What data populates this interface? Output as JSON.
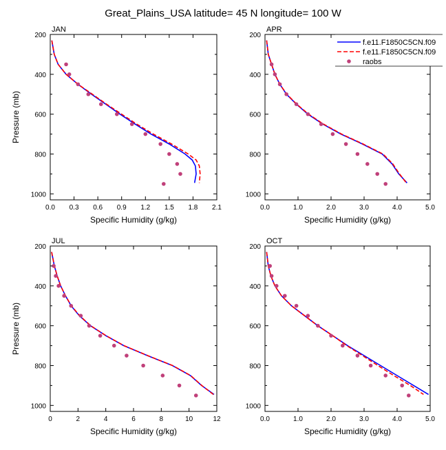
{
  "title": "Great_Plains_USA  latitude= 45 N longitude= 100 W",
  "legend": [
    {
      "label": "f.e11.F1850C5CN.f09",
      "color": "#0000ff",
      "style": "solid"
    },
    {
      "label": "f.e11.F1850C5CN.f09",
      "color": "#ff0000",
      "style": "dashed"
    },
    {
      "label": "raobs",
      "color": "#c0407a",
      "style": "marker"
    }
  ],
  "chart_data": [
    {
      "type": "line",
      "panel": "JAN",
      "xlabel": "Specific Humidity (g/kg)",
      "ylabel": "Pressure (mb)",
      "xlim": [
        0,
        2.1
      ],
      "ylim": [
        200,
        1030
      ],
      "y_inverted": true,
      "xticks": [
        "0.0",
        "0.3",
        "0.6",
        "0.9",
        "1.2",
        "1.5",
        "1.8",
        "2.1"
      ],
      "yticks": [
        "200",
        "400",
        "600",
        "800",
        "1000"
      ],
      "series": [
        {
          "name": "f.e11.F1850C5CN.f09",
          "color": "#0000ff",
          "style": "solid",
          "points": [
            [
              0.02,
              230
            ],
            [
              0.05,
              300
            ],
            [
              0.1,
              350
            ],
            [
              0.2,
              400
            ],
            [
              0.35,
              450
            ],
            [
              0.52,
              500
            ],
            [
              0.7,
              550
            ],
            [
              0.88,
              600
            ],
            [
              1.07,
              650
            ],
            [
              1.27,
              700
            ],
            [
              1.5,
              750
            ],
            [
              1.7,
              800
            ],
            [
              1.79,
              830
            ],
            [
              1.83,
              860
            ],
            [
              1.84,
              900
            ],
            [
              1.82,
              945
            ]
          ]
        },
        {
          "name": "f.e11.F1850C5CN.f09",
          "color": "#ff0000",
          "style": "dashed",
          "points": [
            [
              0.02,
              230
            ],
            [
              0.05,
              300
            ],
            [
              0.1,
              350
            ],
            [
              0.2,
              400
            ],
            [
              0.35,
              450
            ],
            [
              0.53,
              500
            ],
            [
              0.71,
              550
            ],
            [
              0.9,
              600
            ],
            [
              1.09,
              650
            ],
            [
              1.3,
              700
            ],
            [
              1.53,
              750
            ],
            [
              1.74,
              800
            ],
            [
              1.84,
              830
            ],
            [
              1.88,
              860
            ],
            [
              1.89,
              900
            ],
            [
              1.88,
              945
            ]
          ]
        },
        {
          "name": "raobs",
          "color": "#c0407a",
          "style": "marker",
          "points": [
            [
              0.2,
              350
            ],
            [
              0.24,
              400
            ],
            [
              0.35,
              450
            ],
            [
              0.48,
              500
            ],
            [
              0.64,
              550
            ],
            [
              0.84,
              600
            ],
            [
              1.03,
              650
            ],
            [
              1.2,
              700
            ],
            [
              1.39,
              750
            ],
            [
              1.5,
              800
            ],
            [
              1.6,
              850
            ],
            [
              1.64,
              900
            ],
            [
              1.43,
              950
            ]
          ]
        }
      ]
    },
    {
      "type": "line",
      "panel": "APR",
      "xlabel": "Specific Humidity (g/kg)",
      "ylabel": "Pressure (mb)",
      "xlim": [
        0,
        5
      ],
      "ylim": [
        200,
        1030
      ],
      "y_inverted": true,
      "xticks": [
        "0.0",
        "1.0",
        "2.0",
        "3.0",
        "4.0",
        "5.0"
      ],
      "yticks": [
        "200",
        "400",
        "600",
        "800",
        "1000"
      ],
      "series": [
        {
          "name": "f.e11.F1850C5CN.f09",
          "color": "#0000ff",
          "style": "solid",
          "points": [
            [
              0.05,
              230
            ],
            [
              0.1,
              300
            ],
            [
              0.2,
              350
            ],
            [
              0.3,
              400
            ],
            [
              0.45,
              450
            ],
            [
              0.65,
              500
            ],
            [
              0.95,
              550
            ],
            [
              1.3,
              600
            ],
            [
              1.75,
              650
            ],
            [
              2.3,
              700
            ],
            [
              2.95,
              750
            ],
            [
              3.55,
              800
            ],
            [
              3.85,
              850
            ],
            [
              4.05,
              900
            ],
            [
              4.3,
              945
            ]
          ]
        },
        {
          "name": "f.e11.F1850C5CN.f09",
          "color": "#ff0000",
          "style": "dashed",
          "points": [
            [
              0.05,
              230
            ],
            [
              0.1,
              300
            ],
            [
              0.2,
              350
            ],
            [
              0.3,
              400
            ],
            [
              0.45,
              450
            ],
            [
              0.66,
              500
            ],
            [
              0.96,
              550
            ],
            [
              1.32,
              600
            ],
            [
              1.77,
              650
            ],
            [
              2.32,
              700
            ],
            [
              2.97,
              750
            ],
            [
              3.57,
              800
            ],
            [
              3.87,
              850
            ],
            [
              4.07,
              900
            ],
            [
              4.28,
              945
            ]
          ]
        },
        {
          "name": "raobs",
          "color": "#c0407a",
          "style": "marker",
          "points": [
            [
              0.2,
              350
            ],
            [
              0.3,
              400
            ],
            [
              0.45,
              450
            ],
            [
              0.65,
              500
            ],
            [
              0.95,
              550
            ],
            [
              1.3,
              600
            ],
            [
              1.7,
              650
            ],
            [
              2.05,
              700
            ],
            [
              2.45,
              750
            ],
            [
              2.8,
              800
            ],
            [
              3.1,
              850
            ],
            [
              3.4,
              900
            ],
            [
              3.65,
              950
            ]
          ]
        }
      ]
    },
    {
      "type": "line",
      "panel": "JUL",
      "xlabel": "Specific Humidity (g/kg)",
      "ylabel": "Pressure (mb)",
      "xlim": [
        0,
        12
      ],
      "ylim": [
        200,
        1030
      ],
      "y_inverted": true,
      "xticks": [
        "0",
        "2",
        "4",
        "6",
        "8",
        "10",
        "12"
      ],
      "yticks": [
        "200",
        "400",
        "600",
        "800",
        "1000"
      ],
      "series": [
        {
          "name": "f.e11.F1850C5CN.f09",
          "color": "#0000ff",
          "style": "solid",
          "points": [
            [
              0.1,
              230
            ],
            [
              0.3,
              300
            ],
            [
              0.5,
              350
            ],
            [
              0.75,
              400
            ],
            [
              1.1,
              450
            ],
            [
              1.5,
              500
            ],
            [
              2.1,
              550
            ],
            [
              2.9,
              600
            ],
            [
              4.0,
              650
            ],
            [
              5.3,
              700
            ],
            [
              7.0,
              750
            ],
            [
              8.8,
              800
            ],
            [
              10.1,
              850
            ],
            [
              10.9,
              900
            ],
            [
              11.8,
              945
            ]
          ]
        },
        {
          "name": "f.e11.F1850C5CN.f09",
          "color": "#ff0000",
          "style": "dashed",
          "points": [
            [
              0.1,
              230
            ],
            [
              0.3,
              300
            ],
            [
              0.5,
              350
            ],
            [
              0.75,
              400
            ],
            [
              1.1,
              450
            ],
            [
              1.52,
              500
            ],
            [
              2.12,
              550
            ],
            [
              2.92,
              600
            ],
            [
              4.02,
              650
            ],
            [
              5.32,
              700
            ],
            [
              7.02,
              750
            ],
            [
              8.82,
              800
            ],
            [
              10.12,
              850
            ],
            [
              10.92,
              900
            ],
            [
              11.75,
              945
            ]
          ]
        },
        {
          "name": "raobs",
          "color": "#c0407a",
          "style": "marker",
          "points": [
            [
              0.25,
              300
            ],
            [
              0.4,
              350
            ],
            [
              0.6,
              400
            ],
            [
              1.0,
              450
            ],
            [
              1.5,
              500
            ],
            [
              2.2,
              550
            ],
            [
              2.8,
              600
            ],
            [
              3.6,
              650
            ],
            [
              4.6,
              700
            ],
            [
              5.5,
              750
            ],
            [
              6.7,
              800
            ],
            [
              8.1,
              850
            ],
            [
              9.3,
              900
            ],
            [
              10.5,
              950
            ]
          ]
        }
      ]
    },
    {
      "type": "line",
      "panel": "OCT",
      "xlabel": "Specific Humidity (g/kg)",
      "ylabel": "Pressure (mb)",
      "xlim": [
        0,
        5
      ],
      "ylim": [
        200,
        1030
      ],
      "y_inverted": true,
      "xticks": [
        "0.0",
        "1.0",
        "2.0",
        "3.0",
        "4.0",
        "5.0"
      ],
      "yticks": [
        "200",
        "400",
        "600",
        "800",
        "1000"
      ],
      "series": [
        {
          "name": "f.e11.F1850C5CN.f09",
          "color": "#0000ff",
          "style": "solid",
          "points": [
            [
              0.05,
              230
            ],
            [
              0.1,
              300
            ],
            [
              0.18,
              350
            ],
            [
              0.3,
              400
            ],
            [
              0.5,
              450
            ],
            [
              0.8,
              500
            ],
            [
              1.2,
              550
            ],
            [
              1.6,
              600
            ],
            [
              2.05,
              650
            ],
            [
              2.5,
              700
            ],
            [
              3.0,
              750
            ],
            [
              3.5,
              800
            ],
            [
              4.0,
              850
            ],
            [
              4.5,
              900
            ],
            [
              4.95,
              945
            ]
          ]
        },
        {
          "name": "f.e11.F1850C5CN.f09",
          "color": "#ff0000",
          "style": "dashed",
          "points": [
            [
              0.05,
              230
            ],
            [
              0.1,
              300
            ],
            [
              0.18,
              350
            ],
            [
              0.3,
              400
            ],
            [
              0.5,
              450
            ],
            [
              0.8,
              500
            ],
            [
              1.2,
              550
            ],
            [
              1.6,
              600
            ],
            [
              2.05,
              650
            ],
            [
              2.48,
              700
            ],
            [
              2.95,
              750
            ],
            [
              3.42,
              800
            ],
            [
              3.9,
              850
            ],
            [
              4.4,
              900
            ],
            [
              4.8,
              945
            ]
          ]
        },
        {
          "name": "raobs",
          "color": "#c0407a",
          "style": "marker",
          "points": [
            [
              0.15,
              300
            ],
            [
              0.2,
              350
            ],
            [
              0.35,
              400
            ],
            [
              0.6,
              450
            ],
            [
              0.95,
              500
            ],
            [
              1.3,
              550
            ],
            [
              1.6,
              600
            ],
            [
              2.0,
              650
            ],
            [
              2.35,
              700
            ],
            [
              2.8,
              750
            ],
            [
              3.2,
              800
            ],
            [
              3.65,
              850
            ],
            [
              4.15,
              900
            ],
            [
              4.35,
              950
            ]
          ]
        }
      ]
    }
  ]
}
